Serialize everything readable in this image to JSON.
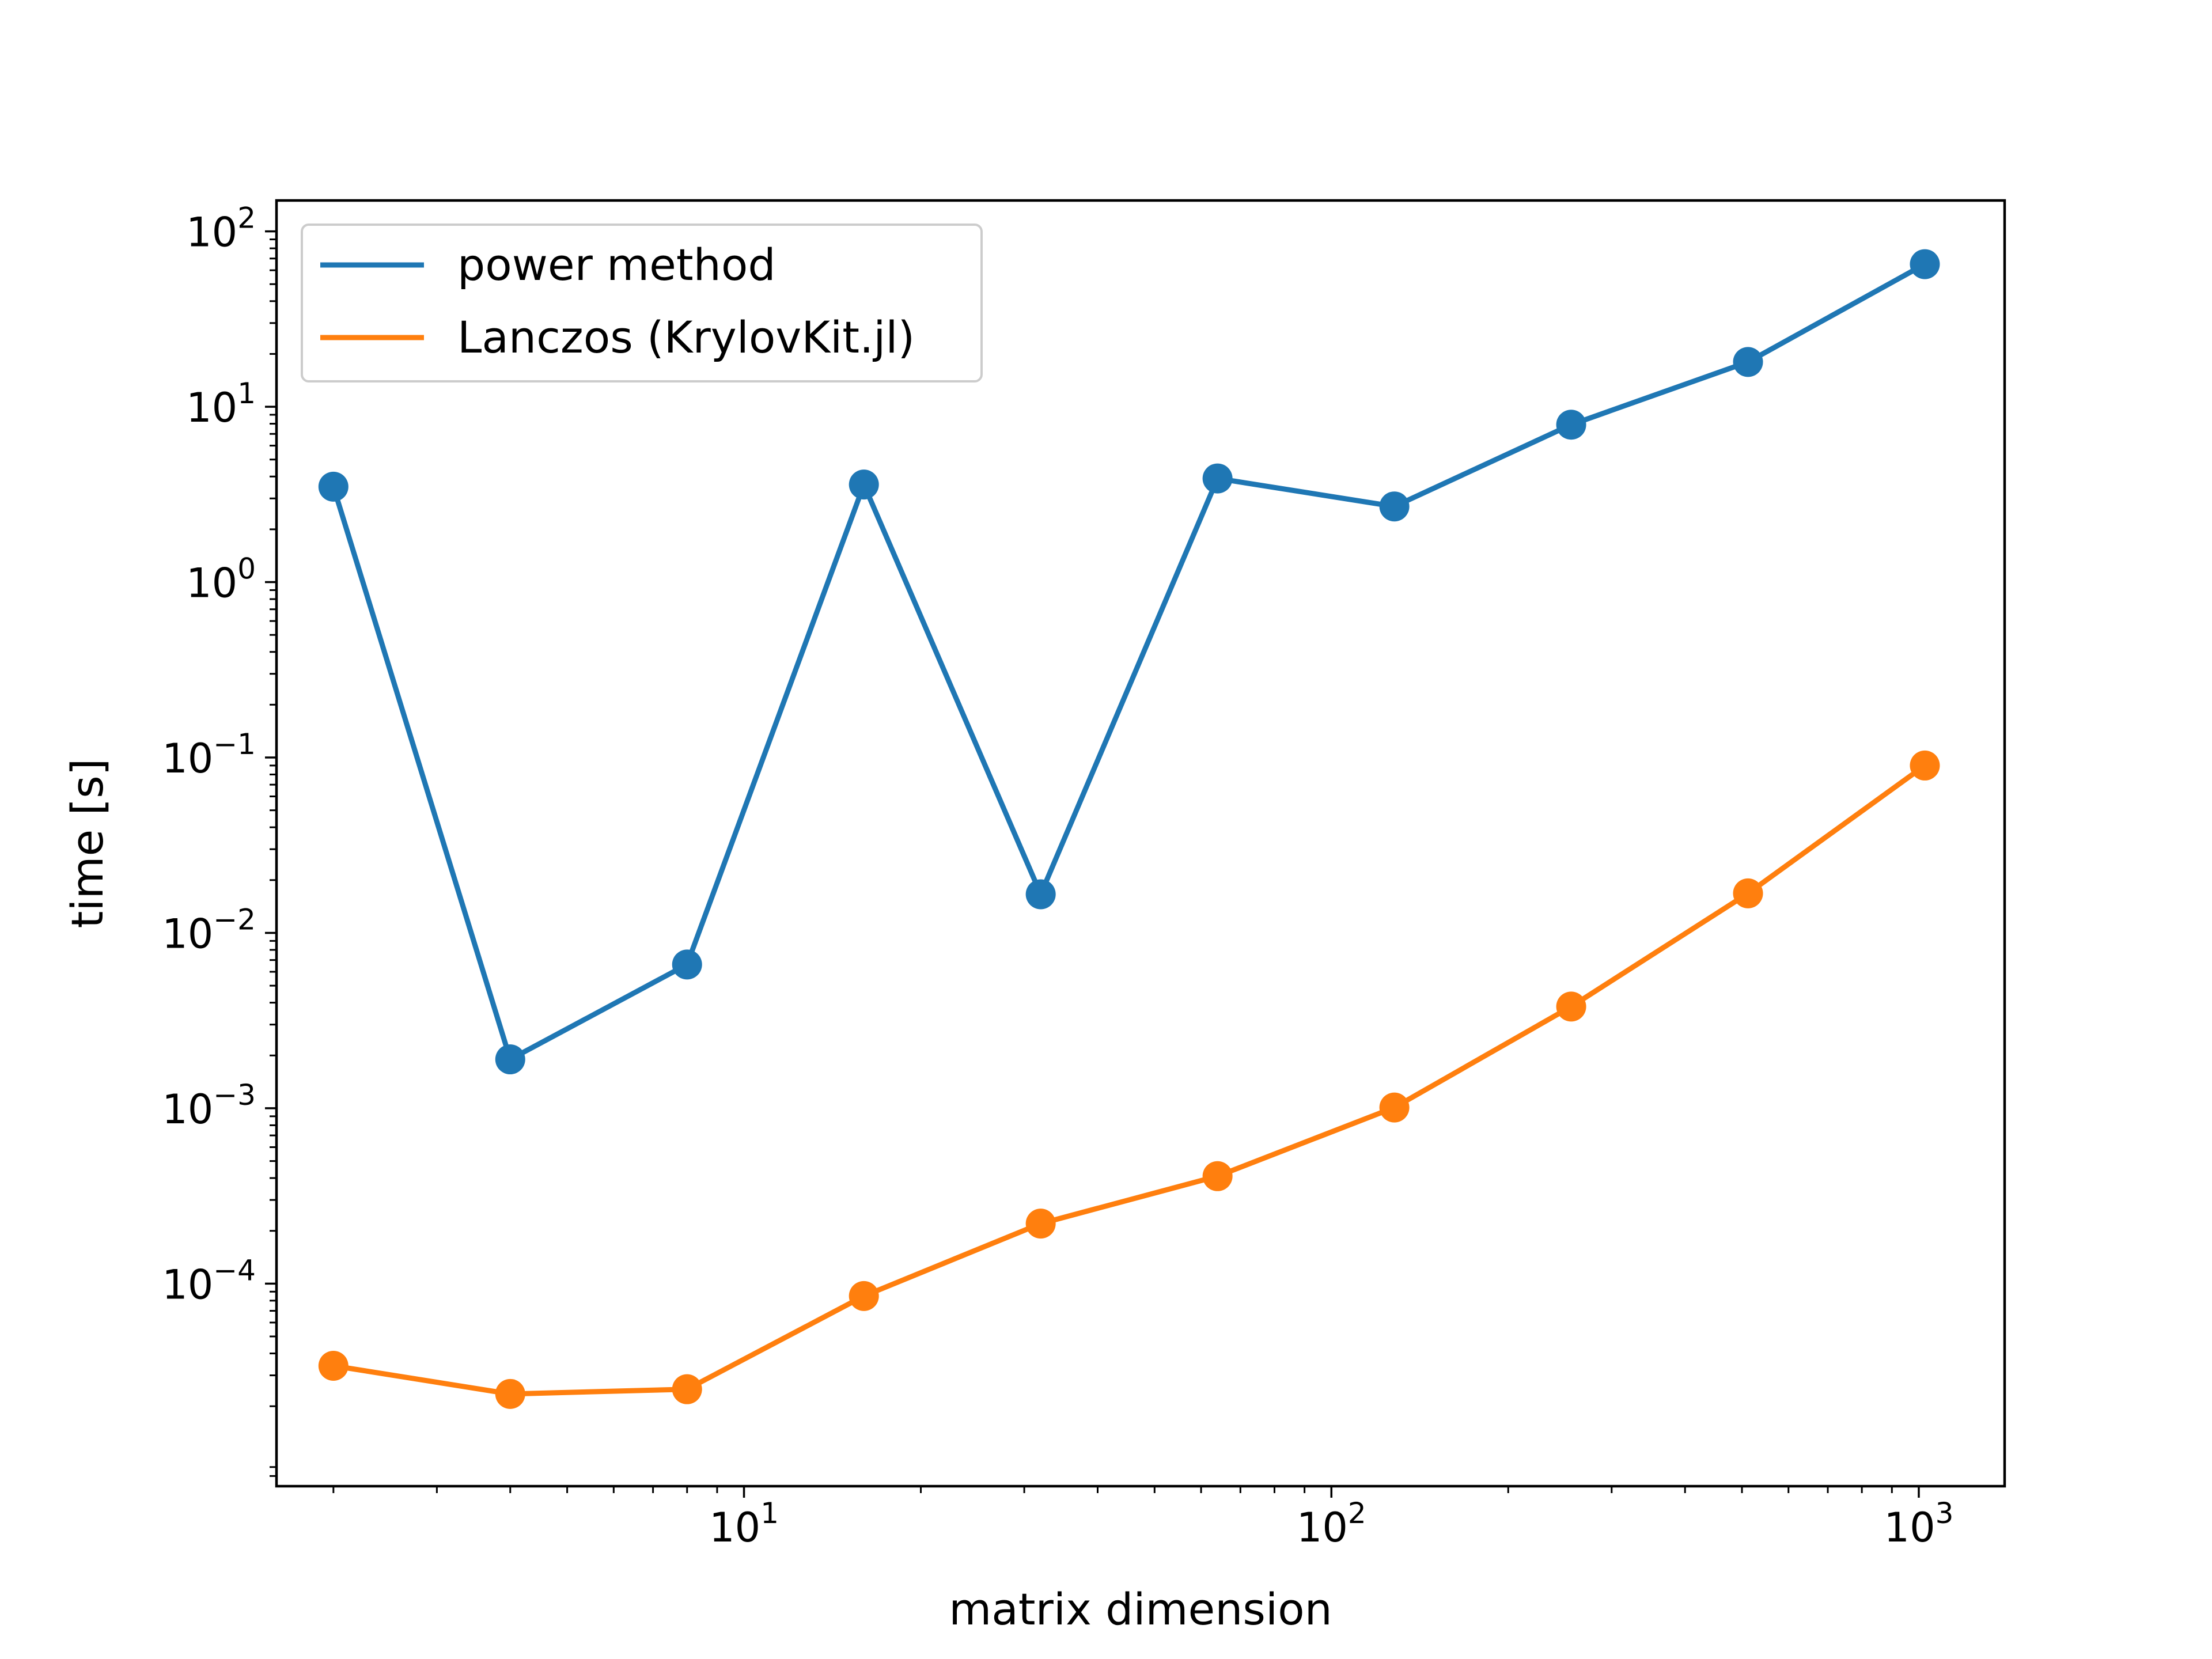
{
  "chart_data": {
    "type": "line",
    "title": "",
    "xlabel": "matrix dimension",
    "ylabel": "time [s]",
    "xscale": "log",
    "yscale": "log",
    "xlim": [
      1.6,
      1400
    ],
    "ylim": [
      7e-06,
      150
    ],
    "grid": false,
    "legend_position": "top-left",
    "x": [
      2,
      4,
      8,
      16,
      32,
      64,
      128,
      256,
      512,
      1024
    ],
    "x_ticks": [
      {
        "value": 10,
        "base": "10",
        "exp": "1"
      },
      {
        "value": 100,
        "base": "10",
        "exp": "2"
      },
      {
        "value": 1000,
        "base": "10",
        "exp": "3"
      }
    ],
    "y_ticks": [
      {
        "value": 0.0001,
        "base": "10",
        "exp": "−4"
      },
      {
        "value": 0.001,
        "base": "10",
        "exp": "−3"
      },
      {
        "value": 0.01,
        "base": "10",
        "exp": "−2"
      },
      {
        "value": 0.1,
        "base": "10",
        "exp": "−1"
      },
      {
        "value": 1,
        "base": "10",
        "exp": "0"
      },
      {
        "value": 10,
        "base": "10",
        "exp": "1"
      },
      {
        "value": 100,
        "base": "10",
        "exp": "2"
      }
    ],
    "series": [
      {
        "name": "power method",
        "color": "#1f77b4",
        "values": [
          3.5,
          0.0019,
          0.0066,
          3.6,
          0.0166,
          3.9,
          2.7,
          7.9,
          18,
          65
        ]
      },
      {
        "name": "Lanczos (KrylovKit.jl)",
        "color": "#ff7f0e",
        "values": [
          3.4e-05,
          2.35e-05,
          2.5e-05,
          8.5e-05,
          0.00022,
          0.00041,
          0.00101,
          0.0038,
          0.0168,
          0.09
        ]
      }
    ]
  }
}
